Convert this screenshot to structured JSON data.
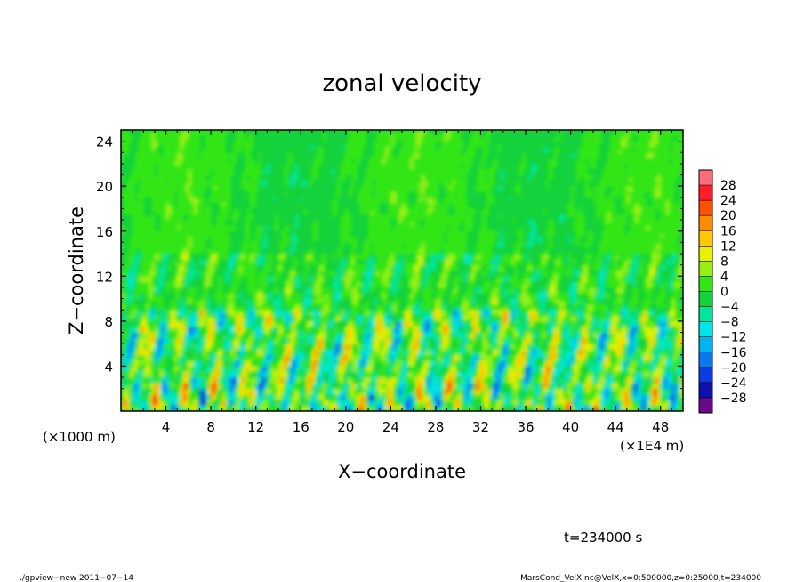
{
  "chart_data": {
    "type": "heatmap",
    "title": "zonal velocity",
    "xlabel": "X−coordinate",
    "ylabel": "Z−coordinate",
    "x_unit_left": "(×1000 m)",
    "x_unit_right": "(×1E4 m)",
    "x_ticks": [
      "4",
      "8",
      "12",
      "16",
      "20",
      "24",
      "28",
      "32",
      "36",
      "40",
      "44",
      "48"
    ],
    "y_ticks": [
      "4",
      "8",
      "12",
      "16",
      "20",
      "24"
    ],
    "xlim": [
      0,
      50
    ],
    "ylim": [
      0,
      25
    ],
    "colorbar_ticks": [
      "28",
      "24",
      "20",
      "16",
      "12",
      "8",
      "4",
      "0",
      "−4",
      "−8",
      "−12",
      "−16",
      "−20",
      "−24",
      "−28"
    ],
    "colorbar_range": [
      -30,
      30
    ],
    "colors": [
      "#6a0a8a",
      "#1010b0",
      "#0a3ce6",
      "#0a78f0",
      "#00b4f0",
      "#00e6e6",
      "#00e69a",
      "#14d23c",
      "#32e614",
      "#96f014",
      "#e6f000",
      "#ffc800",
      "#ff8c00",
      "#ff5000",
      "#ff1e28",
      "#ff6e78"
    ],
    "field_note_time": "t=234000 s"
  },
  "footer": {
    "time": "t=234000 s",
    "program": "./gpview−new   2011−07−14",
    "source": "MarsCond_VelX.nc@VelX,x=0:500000,z=0:25000,t=234000"
  }
}
